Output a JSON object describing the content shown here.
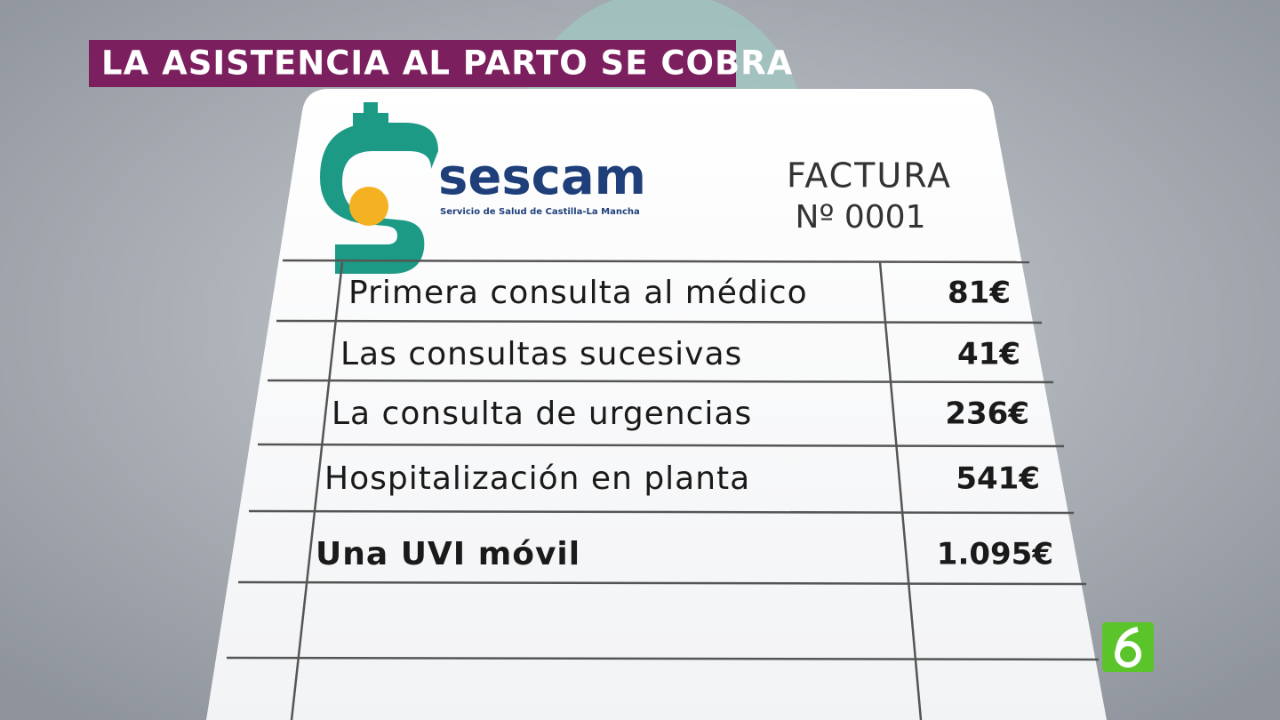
{
  "banner": {
    "title": "LA ASISTENCIA AL PARTO SE COBRA"
  },
  "logo": {
    "name": "sescam",
    "subtitle": "Servicio de Salud de Castilla-La Mancha"
  },
  "invoice": {
    "title": "FACTURA",
    "number": "Nº 0001",
    "rows": [
      [
        "Primera consulta al médico",
        "81€"
      ],
      [
        "Las consultas sucesivas",
        "41€"
      ],
      [
        "La consulta de urgencias",
        "236€"
      ],
      [
        "Hospitalización en planta",
        "541€"
      ],
      [
        "Una UVI móvil",
        "1.095€"
      ]
    ]
  }
}
